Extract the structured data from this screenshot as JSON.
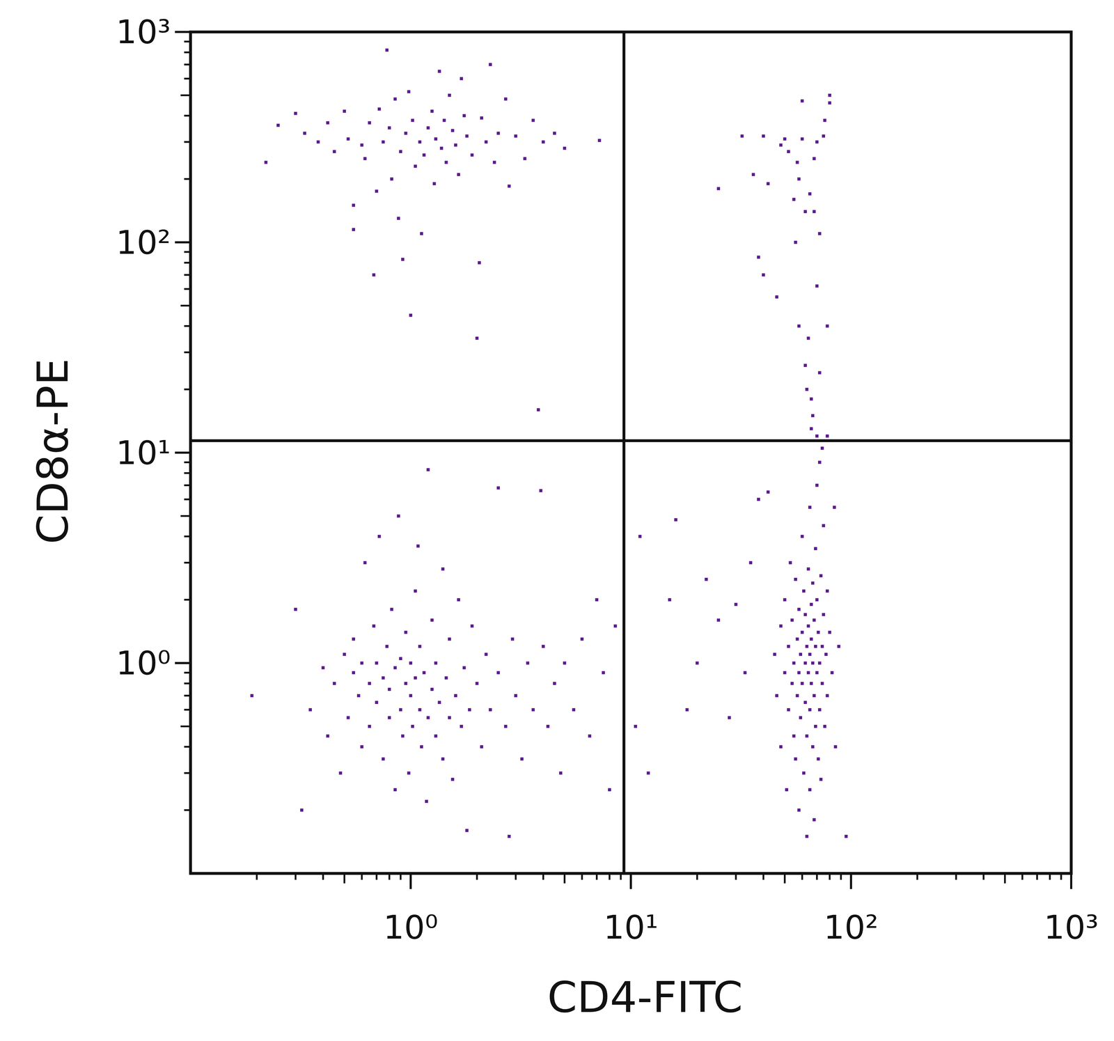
{
  "chart_data": {
    "type": "scatter",
    "x_label": "CD4-FITC",
    "y_label": "CD8α-PE",
    "log": true,
    "color": "#5c1b8e",
    "xlim": [
      0.1,
      1000
    ],
    "ylim": [
      0.1,
      1000
    ],
    "xticks": [
      {
        "value": 1,
        "label": "10⁰"
      },
      {
        "value": 10,
        "label": "10¹"
      },
      {
        "value": 100,
        "label": "10²"
      },
      {
        "value": 1000,
        "label": "10³"
      }
    ],
    "yticks": [
      {
        "value": 1,
        "label": "10⁰"
      },
      {
        "value": 10,
        "label": "10¹"
      },
      {
        "value": 100,
        "label": "10²"
      },
      {
        "value": 1000,
        "label": "10³"
      }
    ],
    "gates": {
      "x": 9.3,
      "y": 11.4
    },
    "x": [
      0.22,
      0.25,
      0.3,
      0.33,
      0.38,
      0.42,
      0.45,
      0.5,
      0.52,
      0.55,
      0.55,
      0.6,
      0.62,
      0.65,
      0.68,
      0.7,
      0.72,
      0.75,
      0.78,
      0.8,
      0.82,
      0.85,
      0.88,
      0.9,
      0.92,
      0.95,
      0.98,
      1.0,
      1.02,
      1.05,
      1.1,
      1.12,
      1.15,
      1.2,
      1.25,
      1.28,
      1.3,
      1.35,
      1.38,
      1.42,
      1.45,
      1.5,
      1.55,
      1.6,
      1.65,
      1.7,
      1.75,
      1.8,
      1.9,
      2.0,
      2.05,
      2.1,
      2.2,
      2.3,
      2.4,
      2.5,
      2.7,
      2.8,
      3.0,
      3.3,
      3.6,
      3.8,
      4.0,
      4.5,
      5.0,
      7.2,
      0.19,
      0.3,
      0.32,
      0.35,
      0.4,
      0.42,
      0.45,
      0.48,
      0.5,
      0.52,
      0.55,
      0.55,
      0.58,
      0.6,
      0.6,
      0.62,
      0.65,
      0.65,
      0.68,
      0.7,
      0.7,
      0.72,
      0.75,
      0.75,
      0.78,
      0.8,
      0.8,
      0.82,
      0.85,
      0.85,
      0.88,
      0.9,
      0.9,
      0.92,
      0.95,
      0.95,
      0.98,
      1.0,
      1.0,
      1.02,
      1.05,
      1.05,
      1.08,
      1.1,
      1.1,
      1.12,
      1.15,
      1.18,
      1.2,
      1.2,
      1.25,
      1.25,
      1.3,
      1.3,
      1.35,
      1.4,
      1.4,
      1.45,
      1.5,
      1.5,
      1.55,
      1.6,
      1.65,
      1.7,
      1.75,
      1.8,
      1.85,
      1.9,
      2.0,
      2.1,
      2.2,
      2.3,
      2.5,
      2.5,
      2.7,
      2.8,
      2.9,
      3.0,
      3.2,
      3.4,
      3.6,
      3.9,
      4.0,
      4.2,
      4.5,
      4.8,
      5.0,
      5.5,
      6.0,
      6.5,
      7.0,
      7.5,
      8.0,
      8.5,
      10.5,
      11,
      12,
      15,
      16,
      18,
      20,
      22,
      25,
      28,
      30,
      33,
      35,
      38,
      42,
      45,
      46,
      48,
      48,
      50,
      50,
      51,
      52,
      52,
      53,
      54,
      54,
      55,
      55,
      56,
      56,
      57,
      57,
      58,
      58,
      58,
      59,
      59,
      60,
      60,
      60,
      61,
      61,
      62,
      62,
      62,
      63,
      63,
      63,
      64,
      64,
      64,
      65,
      65,
      65,
      65,
      66,
      66,
      66,
      67,
      67,
      67,
      68,
      68,
      68,
      69,
      69,
      69,
      70,
      70,
      70,
      71,
      71,
      72,
      72,
      72,
      73,
      73,
      74,
      74,
      75,
      75,
      76,
      77,
      78,
      78,
      80,
      82,
      84,
      85,
      88,
      95,
      25,
      32,
      36,
      40,
      42,
      38,
      40,
      46,
      48,
      50,
      52,
      55,
      56,
      57,
      58,
      58,
      60,
      62,
      63,
      64,
      65,
      66,
      68,
      68,
      70,
      70,
      72,
      72,
      74,
      75,
      76,
      78,
      78,
      80,
      80,
      60,
      62,
      66,
      67,
      70
    ],
    "values": [
      240,
      360,
      410,
      330,
      300,
      370,
      270,
      420,
      310,
      150,
      115,
      290,
      250,
      370,
      70,
      175,
      430,
      300,
      820,
      350,
      200,
      480,
      130,
      270,
      83,
      330,
      520,
      45,
      380,
      230,
      300,
      110,
      260,
      350,
      420,
      190,
      310,
      650,
      280,
      380,
      240,
      500,
      340,
      290,
      210,
      600,
      400,
      320,
      260,
      35,
      80,
      390,
      300,
      700,
      240,
      330,
      480,
      185,
      320,
      250,
      380,
      16,
      300,
      330,
      280,
      305,
      0.7,
      1.8,
      0.2,
      0.6,
      0.95,
      0.45,
      0.8,
      0.3,
      1.1,
      0.55,
      0.9,
      1.3,
      0.7,
      0.4,
      1.0,
      3.0,
      0.8,
      0.5,
      1.5,
      0.65,
      1.0,
      4.0,
      0.85,
      0.35,
      1.2,
      0.55,
      0.75,
      1.8,
      0.95,
      0.25,
      5.0,
      0.6,
      1.05,
      0.45,
      0.8,
      1.4,
      0.3,
      0.7,
      1.0,
      0.5,
      2.2,
      0.85,
      3.6,
      0.6,
      1.2,
      0.4,
      0.9,
      0.22,
      0.55,
      8.3,
      1.6,
      0.75,
      0.45,
      1.0,
      0.65,
      2.8,
      0.35,
      0.85,
      0.55,
      1.3,
      0.28,
      0.7,
      2.0,
      0.5,
      0.95,
      0.16,
      0.6,
      1.5,
      0.8,
      0.4,
      1.1,
      0.6,
      6.8,
      0.9,
      0.5,
      0.15,
      1.3,
      0.7,
      0.35,
      1.0,
      0.6,
      6.6,
      1.2,
      0.5,
      0.8,
      0.3,
      1.0,
      0.6,
      1.3,
      0.45,
      2.0,
      0.9,
      0.25,
      1.5,
      0.5,
      4,
      0.3,
      2,
      4.8,
      0.6,
      1.0,
      2.5,
      1.6,
      0.55,
      1.9,
      0.9,
      3.0,
      6,
      6.5,
      1.1,
      0.7,
      1.5,
      0.4,
      0.9,
      2.0,
      0.25,
      1.2,
      0.6,
      3.0,
      0.8,
      1.6,
      0.45,
      1.0,
      2.5,
      0.35,
      1.3,
      0.7,
      0.9,
      1.8,
      0.2,
      1.1,
      0.55,
      4.0,
      1.4,
      0.8,
      0.3,
      2.2,
      1.0,
      0.65,
      1.7,
      0.15,
      1.2,
      0.45,
      2.8,
      0.9,
      1.5,
      0.6,
      1.1,
      5.5,
      0.25,
      1.9,
      0.8,
      1.3,
      0.4,
      2.4,
      1.0,
      0.7,
      1.6,
      0.18,
      3.5,
      1.2,
      0.5,
      0.9,
      2.0,
      7.0,
      0.35,
      1.4,
      1.0,
      0.6,
      9.0,
      2.6,
      0.28,
      1.2,
      0.8,
      1.7,
      4.5,
      0.5,
      1.1,
      0.7,
      2.2,
      1.4,
      0.9,
      5.5,
      0.4,
      1.2,
      0.15,
      180,
      320,
      210,
      320,
      190,
      85,
      70,
      55,
      290,
      310,
      270,
      160,
      100,
      240,
      200,
      40,
      310,
      26,
      20,
      35,
      170,
      18,
      250,
      140,
      12,
      62,
      110,
      24,
      10.5,
      320,
      380,
      40,
      12,
      500,
      460,
      470,
      140,
      13,
      15,
      300
    ]
  }
}
